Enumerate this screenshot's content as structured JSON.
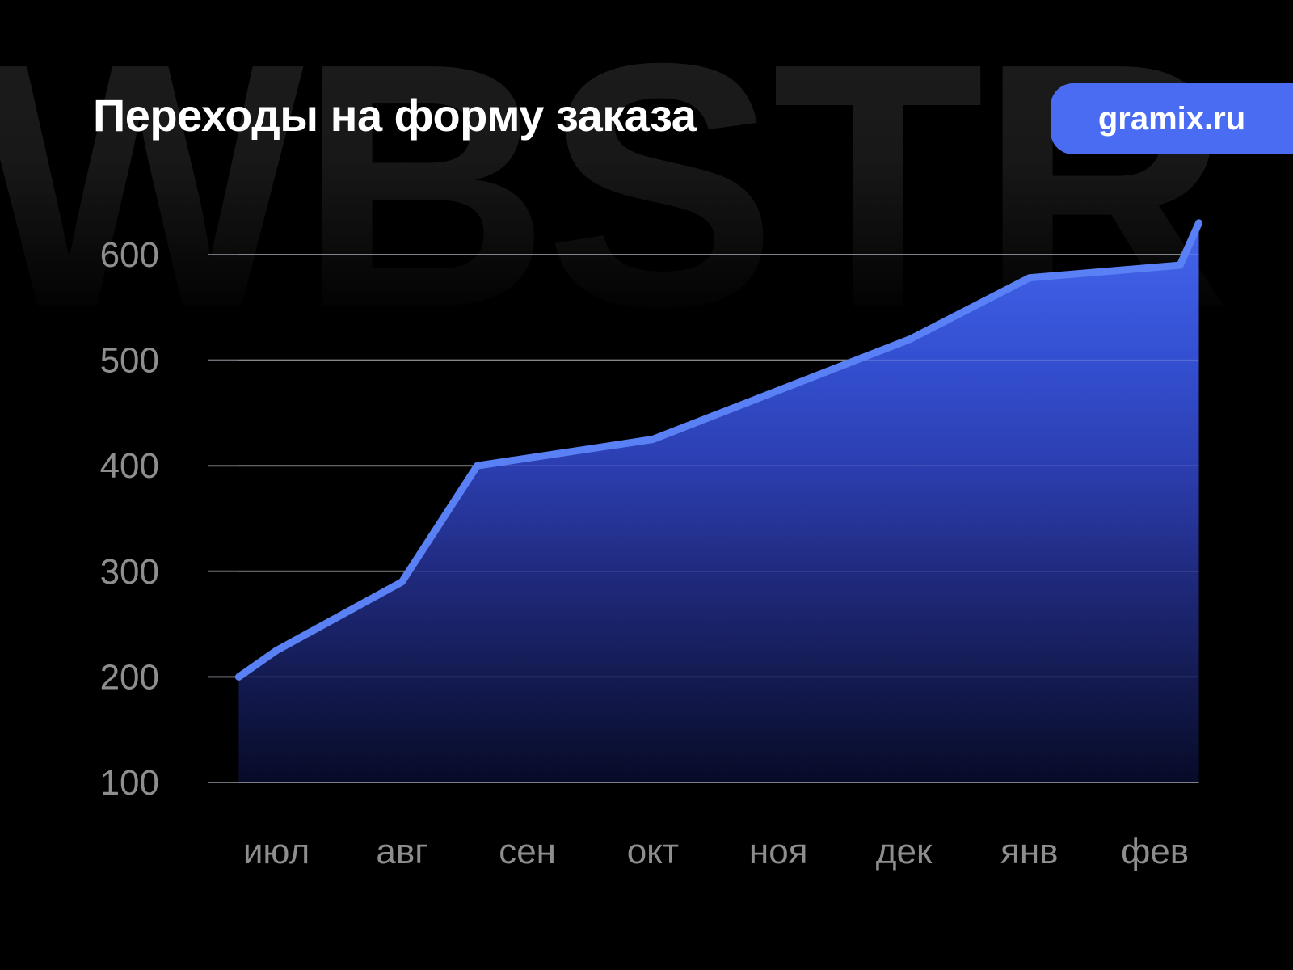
{
  "page": {
    "background": "#000000",
    "watermark_text": "WBSTR"
  },
  "header": {
    "title": "Переходы на форму заказа",
    "badge": {
      "label": "gramix.ru",
      "background": "#4a6cf2",
      "text_color": "#ffffff"
    }
  },
  "chart_data": {
    "type": "area",
    "title": "Переходы на форму заказа",
    "categories": [
      "июл",
      "авг",
      "сен",
      "окт",
      "ноя",
      "дек",
      "янв",
      "фев"
    ],
    "values_at_months": [
      225,
      290,
      405,
      425,
      470,
      520,
      580,
      588
    ],
    "end_spike_value": 630,
    "polyline": [
      {
        "month_index": -0.3,
        "value": 200
      },
      {
        "month_index": 0.0,
        "value": 225
      },
      {
        "month_index": 1.0,
        "value": 290
      },
      {
        "month_index": 1.6,
        "value": 400
      },
      {
        "month_index": 3.0,
        "value": 425
      },
      {
        "month_index": 5.05,
        "value": 520
      },
      {
        "month_index": 6.0,
        "value": 578
      },
      {
        "month_index": 7.2,
        "value": 590
      },
      {
        "month_index": 7.35,
        "value": 630
      }
    ],
    "y_ticks": [
      100,
      200,
      300,
      400,
      500,
      600
    ],
    "ylim": [
      100,
      650
    ],
    "grid": true,
    "legend": false,
    "xlabel": "",
    "ylabel": "",
    "line_color": "#5a80f5",
    "area_gradient": [
      "#4466ee",
      "#3450d2",
      "#2c3fb2",
      "#202b80",
      "#141b52",
      "#070b28"
    ],
    "axis_label_color": "#8e8e8e",
    "gridline_color": "#8a8f98"
  }
}
